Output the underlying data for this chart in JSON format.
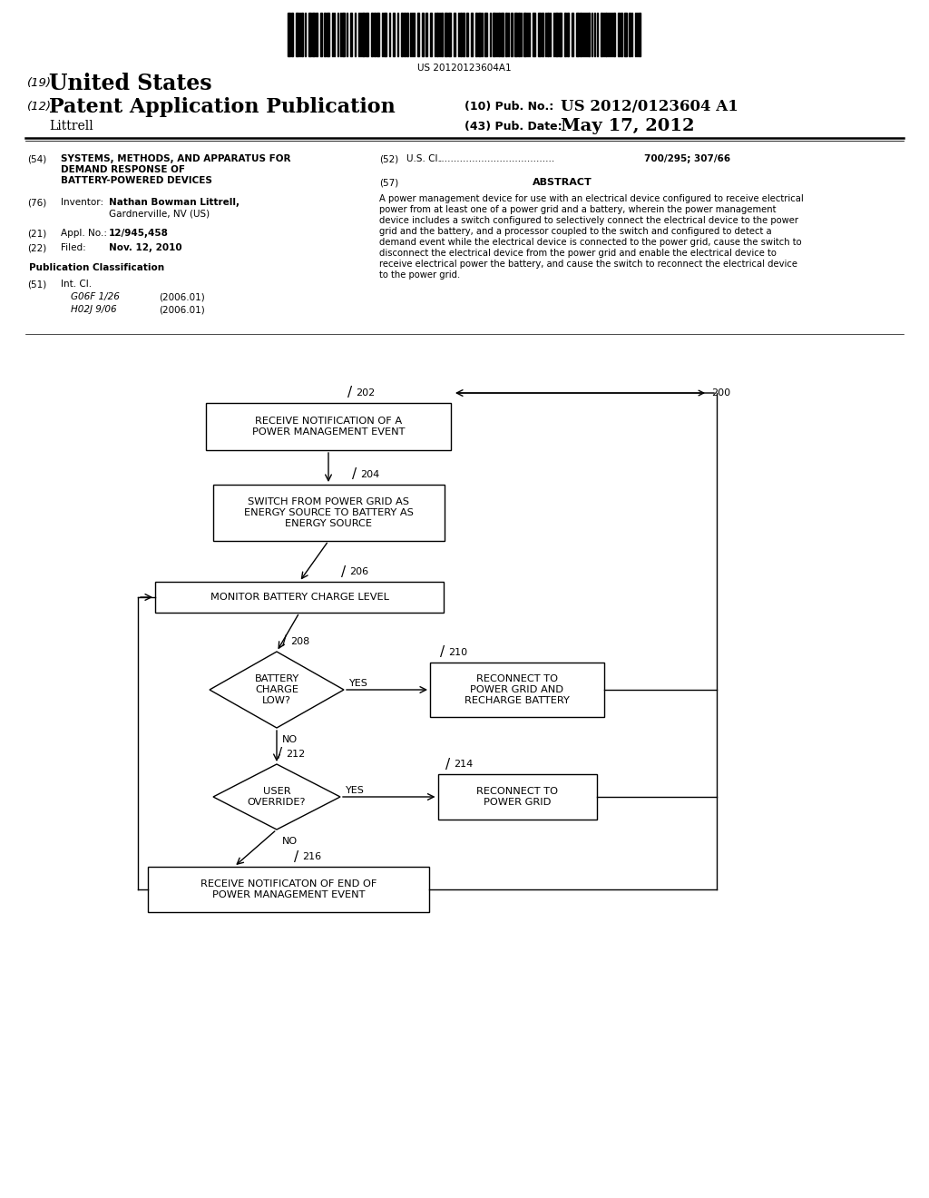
{
  "bg_color": "#ffffff",
  "barcode_text": "US 20120123604A1",
  "header": {
    "country_num": "(19)",
    "country": "United States",
    "type_num": "(12)",
    "type": "Patent Application Publication",
    "pub_num_label": "(10) Pub. No.:",
    "pub_num": "US 2012/0123604 A1",
    "inventor": "Littrell",
    "pub_date_label": "(43) Pub. Date:",
    "pub_date": "May 17, 2012"
  },
  "fields": {
    "title_num": "(54)",
    "title_line1": "SYSTEMS, METHODS, AND APPARATUS FOR",
    "title_line2": "DEMAND RESPONSE OF",
    "title_line3": "BATTERY-POWERED DEVICES",
    "inventor_num": "(76)",
    "inventor_label": "Inventor:",
    "inventor_name": "Nathan Bowman Littrell,",
    "inventor_city": "Gardnerville, NV (US)",
    "appl_num": "(21)",
    "appl_label": "Appl. No.:",
    "appl_val": "12/945,458",
    "filed_num": "(22)",
    "filed_label": "Filed:",
    "filed_val": "Nov. 12, 2010",
    "pub_class_label": "Publication Classification",
    "int_cl_num": "(51)",
    "int_cl_label": "Int. Cl.",
    "int_cl_1": "G06F 1/26",
    "int_cl_1_date": "(2006.01)",
    "int_cl_2": "H02J 9/06",
    "int_cl_2_date": "(2006.01)",
    "us_cl_num": "(52)",
    "us_cl_label": "U.S. Cl.",
    "us_cl_dots": "......................................",
    "us_cl_val": "700/295; 307/66",
    "abstract_num": "(57)",
    "abstract_title": "ABSTRACT",
    "abstract_lines": [
      "A power management device for use with an electrical device configured to receive electrical",
      "power from at least one of a power grid and a battery, wherein the power management",
      "device includes a switch configured to selectively connect the electrical device to the power",
      "grid and the battery, and a processor coupled to the switch and configured to detect a",
      "demand event while the electrical device is connected to the power grid, cause the switch to",
      "disconnect the electrical device from the power grid and enable the electrical device to",
      "receive electrical power the battery, and cause the switch to reconnect the electrical device",
      "to the power grid."
    ]
  },
  "flowchart": {
    "box202_label": "RECEIVE NOTIFICATION OF A\nPOWER MANAGEMENT EVENT",
    "box202_num": "202",
    "box200_num": "200",
    "box204_label": "SWITCH FROM POWER GRID AS\nENERGY SOURCE TO BATTERY AS\nENERGY SOURCE",
    "box204_num": "204",
    "box206_label": "MONITOR BATTERY CHARGE LEVEL",
    "box206_num": "206",
    "diamond208_label": "BATTERY\nCHARGE\nLOW?",
    "diamond208_num": "208",
    "box210_label": "RECONNECT TO\nPOWER GRID AND\nRECHARGE BATTERY",
    "box210_num": "210",
    "diamond212_label": "USER\nOVERRIDE?",
    "diamond212_num": "212",
    "box214_label": "RECONNECT TO\nPOWER GRID",
    "box214_num": "214",
    "box216_label": "RECEIVE NOTIFICATON OF END OF\nPOWER MANAGEMENT EVENT",
    "box216_num": "216",
    "yes_label": "YES",
    "no_label": "NO"
  }
}
